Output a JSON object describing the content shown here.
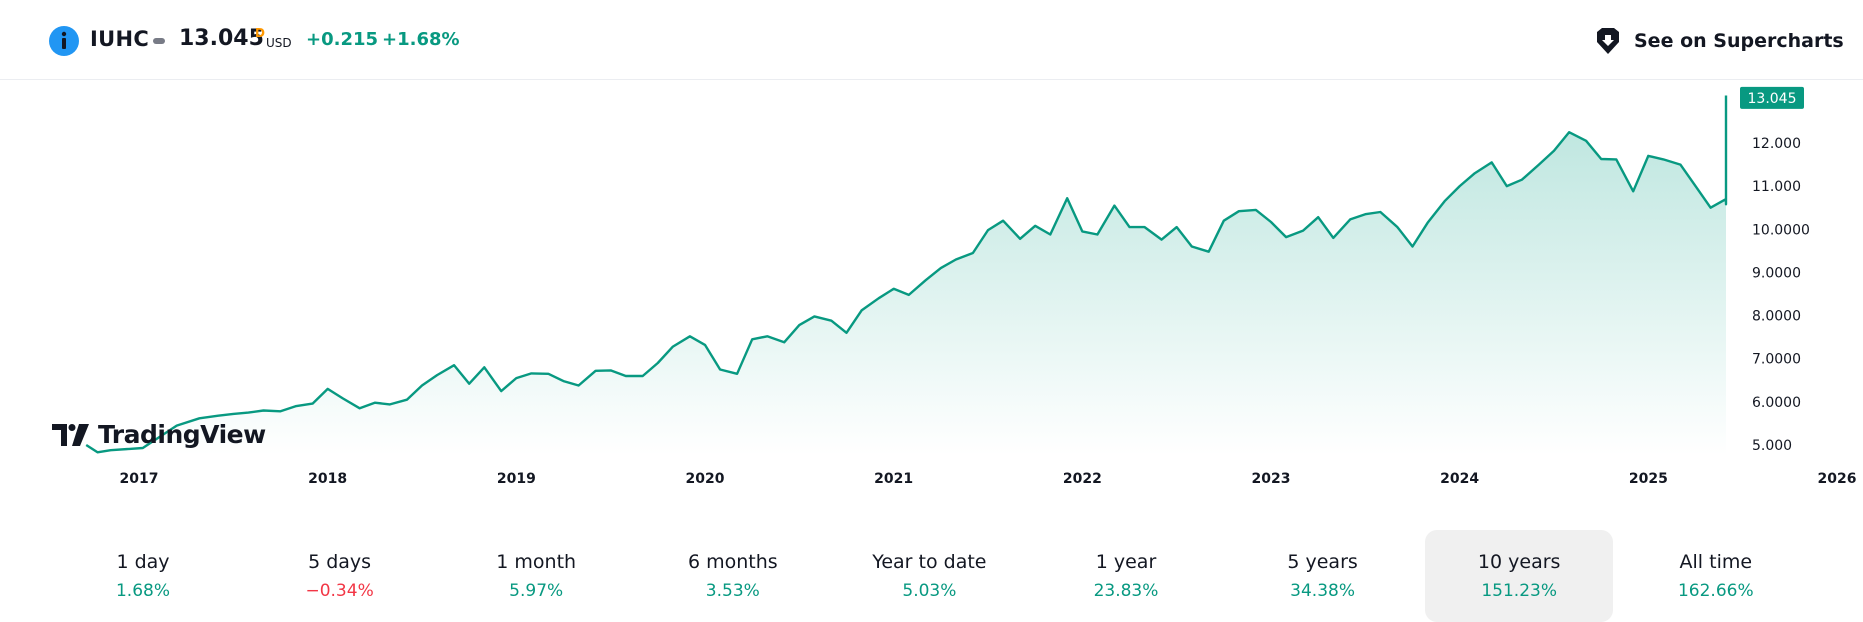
{
  "header": {
    "symbol": "IUHC",
    "price": "13.045",
    "flag": "D",
    "currency": "USD",
    "change": "+0.215",
    "change_percent": "+1.68%",
    "supercharts_label": "See on Supercharts",
    "info_icon": "info-icon",
    "supercharts_icon": "supercharts-pin-icon"
  },
  "brand": {
    "logo_text": "TradingView"
  },
  "colors": {
    "accent": "#089981",
    "negative": "#f23645",
    "info": "#2196f3",
    "flag": "#ff9800",
    "area_fill": "#22ab94"
  },
  "chart_data": {
    "type": "area",
    "title": "",
    "xlabel": "",
    "ylabel": "",
    "x_tick_labels": [
      "2017",
      "2018",
      "2019",
      "2020",
      "2021",
      "2022",
      "2023",
      "2024",
      "2025",
      "2026"
    ],
    "y_tick_labels": [
      "5.000",
      "6.0000",
      "7.0000",
      "8.0000",
      "9.0000",
      "10.0000",
      "11.000",
      "12.000"
    ],
    "y_tick_values": [
      5,
      6,
      7,
      8,
      9,
      10,
      11,
      12
    ],
    "ylim": [
      4.95,
      13.3
    ],
    "xlim": [
      2016.7,
      2026.5
    ],
    "last_price_label": "13.045",
    "grid": false,
    "series": [
      {
        "points": [
          [
            2016.72,
            5.0
          ],
          [
            2016.78,
            4.83
          ],
          [
            2016.85,
            4.88
          ],
          [
            2016.95,
            4.91
          ],
          [
            2017.02,
            4.93
          ],
          [
            2017.2,
            5.45
          ],
          [
            2017.32,
            5.62
          ],
          [
            2017.42,
            5.68
          ],
          [
            2017.5,
            5.72
          ],
          [
            2017.58,
            5.75
          ],
          [
            2017.66,
            5.8
          ],
          [
            2017.75,
            5.78
          ],
          [
            2017.83,
            5.9
          ],
          [
            2017.92,
            5.96
          ],
          [
            2018.0,
            6.3
          ],
          [
            2018.08,
            6.08
          ],
          [
            2018.17,
            5.85
          ],
          [
            2018.25,
            5.98
          ],
          [
            2018.33,
            5.94
          ],
          [
            2018.42,
            6.05
          ],
          [
            2018.5,
            6.38
          ],
          [
            2018.58,
            6.62
          ],
          [
            2018.67,
            6.85
          ],
          [
            2018.75,
            6.42
          ],
          [
            2018.83,
            6.8
          ],
          [
            2018.92,
            6.25
          ],
          [
            2019.0,
            6.55
          ],
          [
            2019.08,
            6.66
          ],
          [
            2019.17,
            6.65
          ],
          [
            2019.25,
            6.48
          ],
          [
            2019.33,
            6.38
          ],
          [
            2019.42,
            6.72
          ],
          [
            2019.5,
            6.73
          ],
          [
            2019.58,
            6.6
          ],
          [
            2019.67,
            6.6
          ],
          [
            2019.75,
            6.9
          ],
          [
            2019.83,
            7.28
          ],
          [
            2019.92,
            7.52
          ],
          [
            2020.0,
            7.32
          ],
          [
            2020.08,
            6.75
          ],
          [
            2020.17,
            6.65
          ],
          [
            2020.25,
            7.45
          ],
          [
            2020.33,
            7.52
          ],
          [
            2020.42,
            7.38
          ],
          [
            2020.5,
            7.78
          ],
          [
            2020.58,
            7.98
          ],
          [
            2020.67,
            7.88
          ],
          [
            2020.75,
            7.6
          ],
          [
            2020.83,
            8.12
          ],
          [
            2020.92,
            8.4
          ],
          [
            2021.0,
            8.62
          ],
          [
            2021.08,
            8.48
          ],
          [
            2021.17,
            8.82
          ],
          [
            2021.25,
            9.1
          ],
          [
            2021.33,
            9.3
          ],
          [
            2021.42,
            9.45
          ],
          [
            2021.5,
            9.98
          ],
          [
            2021.58,
            10.2
          ],
          [
            2021.67,
            9.78
          ],
          [
            2021.75,
            10.08
          ],
          [
            2021.83,
            9.88
          ],
          [
            2021.92,
            10.72
          ],
          [
            2022.0,
            9.95
          ],
          [
            2022.08,
            9.88
          ],
          [
            2022.17,
            10.55
          ],
          [
            2022.25,
            10.05
          ],
          [
            2022.33,
            10.05
          ],
          [
            2022.42,
            9.76
          ],
          [
            2022.5,
            10.05
          ],
          [
            2022.58,
            9.6
          ],
          [
            2022.67,
            9.48
          ],
          [
            2022.75,
            10.2
          ],
          [
            2022.83,
            10.42
          ],
          [
            2022.92,
            10.45
          ],
          [
            2023.0,
            10.17
          ],
          [
            2023.08,
            9.82
          ],
          [
            2023.17,
            9.97
          ],
          [
            2023.25,
            10.28
          ],
          [
            2023.33,
            9.8
          ],
          [
            2023.42,
            10.23
          ],
          [
            2023.5,
            10.35
          ],
          [
            2023.58,
            10.4
          ],
          [
            2023.67,
            10.05
          ],
          [
            2023.75,
            9.6
          ],
          [
            2023.83,
            10.15
          ],
          [
            2023.92,
            10.65
          ],
          [
            2024.0,
            11.0
          ],
          [
            2024.08,
            11.3
          ],
          [
            2024.17,
            11.55
          ],
          [
            2024.25,
            11.0
          ],
          [
            2024.33,
            11.15
          ],
          [
            2024.42,
            11.5
          ],
          [
            2024.5,
            11.82
          ],
          [
            2024.58,
            12.25
          ],
          [
            2024.67,
            12.05
          ],
          [
            2024.75,
            11.63
          ],
          [
            2024.83,
            11.62
          ],
          [
            2024.92,
            10.88
          ],
          [
            2025.0,
            11.7
          ],
          [
            2025.08,
            11.62
          ],
          [
            2025.17,
            11.5
          ],
          [
            2025.25,
            11.0
          ],
          [
            2025.33,
            10.5
          ],
          [
            2025.42,
            10.7
          ],
          [
            2025.5,
            10.58
          ],
          [
            2025.58,
            10.88
          ],
          [
            2025.67,
            10.92
          ],
          [
            2025.75,
            11.5
          ],
          [
            2025.83,
            12.65
          ],
          [
            2025.92,
            12.53
          ],
          [
            2026.0,
            12.38
          ],
          [
            2026.08,
            12.83
          ],
          [
            2026.17,
            11.7
          ],
          [
            2026.25,
            11.72
          ],
          [
            2026.33,
            12.02
          ],
          [
            2026.42,
            12.9
          ],
          [
            2026.5,
            13.1
          ]
        ]
      }
    ]
  },
  "periods": [
    {
      "label": "1 day",
      "value": "1.68%",
      "sign": "pos"
    },
    {
      "label": "5 days",
      "value": "−0.34%",
      "sign": "neg"
    },
    {
      "label": "1 month",
      "value": "5.97%",
      "sign": "pos"
    },
    {
      "label": "6 months",
      "value": "3.53%",
      "sign": "pos"
    },
    {
      "label": "Year to date",
      "value": "5.03%",
      "sign": "pos"
    },
    {
      "label": "1 year",
      "value": "23.83%",
      "sign": "pos"
    },
    {
      "label": "5 years",
      "value": "34.38%",
      "sign": "pos"
    },
    {
      "label": "10 years",
      "value": "151.23%",
      "sign": "pos",
      "selected": true
    },
    {
      "label": "All time",
      "value": "162.66%",
      "sign": "pos"
    }
  ]
}
